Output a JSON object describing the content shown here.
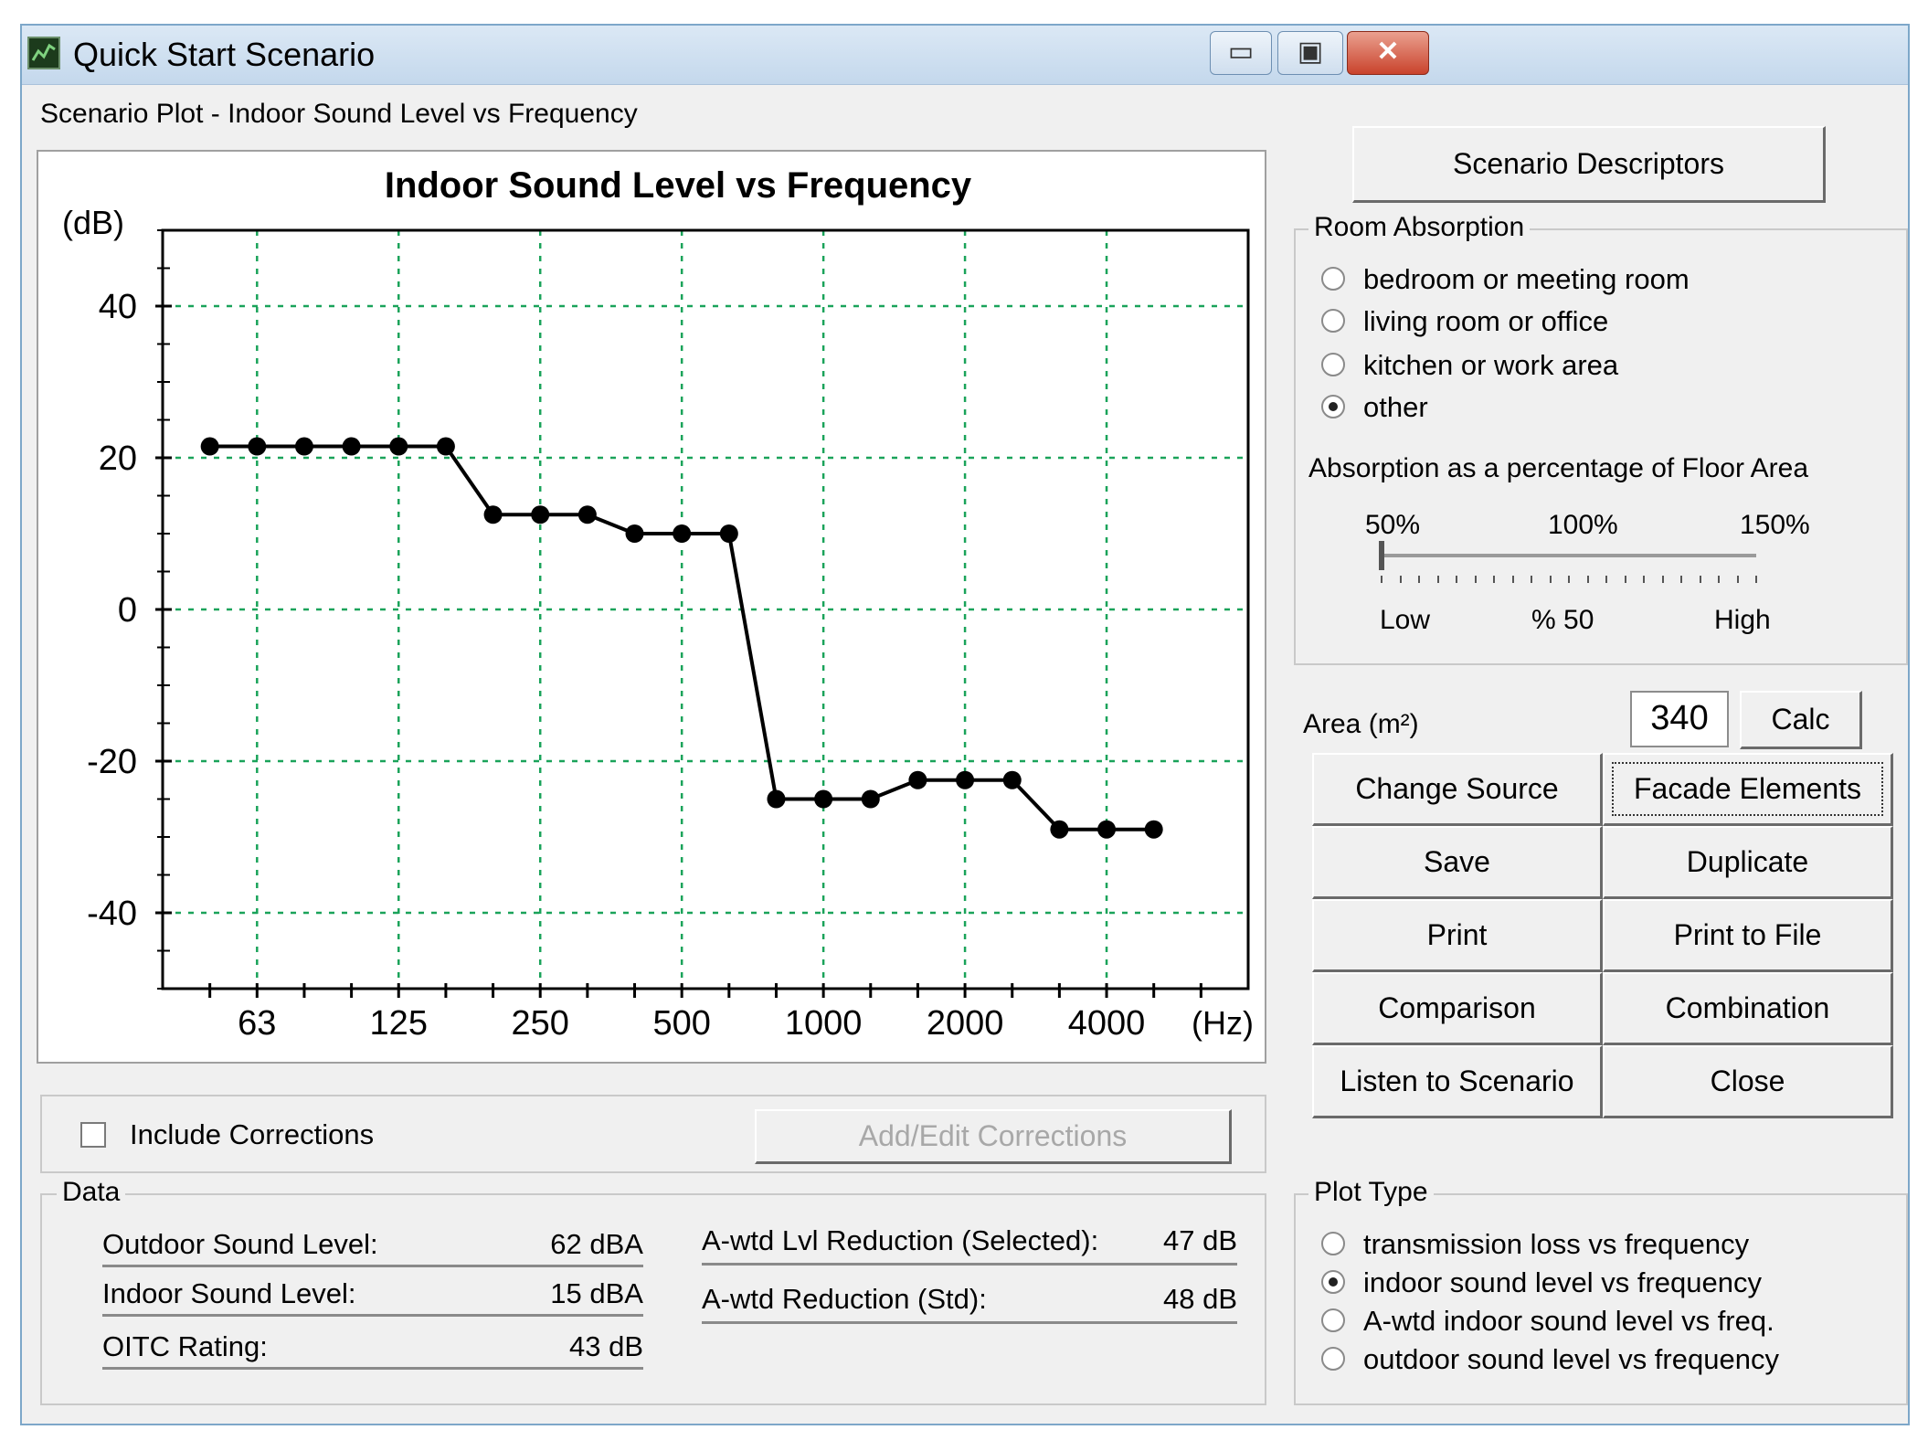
{
  "window": {
    "title": "Quick Start Scenario",
    "controls": {
      "minimize": "▭",
      "maximize": "▣",
      "close": "✕"
    }
  },
  "plot_section_label": "Scenario Plot - Indoor Sound Level vs Frequency",
  "chart_data": {
    "type": "line",
    "title": "Indoor Sound Level vs Frequency",
    "ylabel": "(dB)",
    "xlabel": "(Hz)",
    "ylim": [
      -50,
      50
    ],
    "yticks": [
      40,
      20,
      0,
      -20,
      -40
    ],
    "x_tick_labels": [
      "63",
      "125",
      "250",
      "500",
      "1000",
      "2000",
      "4000"
    ],
    "x_positions": [
      -1,
      0,
      1,
      2,
      3,
      4,
      5,
      6,
      7,
      8,
      9,
      10,
      11,
      12,
      13,
      14,
      15,
      16,
      17,
      18,
      19,
      20
    ],
    "labeled_positions": [
      0,
      3,
      6,
      9,
      12,
      15,
      18
    ],
    "grid": true,
    "series": [
      {
        "values": [
          21.5,
          21.5,
          21.5,
          21.5,
          21.5,
          21.5,
          12.5,
          12.5,
          12.5,
          10,
          10,
          10,
          -25,
          -25,
          -25,
          -22.5,
          -22.5,
          -22.5,
          -29,
          -29,
          -29
        ]
      }
    ]
  },
  "buttons": {
    "scenario_descriptors": "Scenario Descriptors",
    "calc": "Calc",
    "change_source": "Change Source",
    "facade_elements": "Facade Elements",
    "save": "Save",
    "duplicate": "Duplicate",
    "print": "Print",
    "print_to_file": "Print to File",
    "comparison": "Comparison",
    "combination": "Combination",
    "listen": "Listen to Scenario",
    "close": "Close",
    "add_edit_corrections": "Add/Edit Corrections"
  },
  "room_absorption": {
    "legend": "Room Absorption",
    "options": [
      "bedroom or meeting room",
      "living room or office",
      "kitchen or work area",
      "other"
    ],
    "selected": 3,
    "absorption_label": "Absorption as a percentage of Floor Area",
    "slider_top_labels": [
      "50%",
      "100%",
      "150%"
    ],
    "slider_bottom_labels": [
      "Low",
      "% 50",
      "High"
    ],
    "slider_value": 0.0
  },
  "area": {
    "label": "Area (m²)",
    "value": "340"
  },
  "corrections": {
    "label": "Include Corrections",
    "checked": false
  },
  "data": {
    "legend": "Data",
    "rows_left": [
      {
        "label": "Outdoor Sound Level:",
        "value": "62 dBA"
      },
      {
        "label": "Indoor Sound Level:",
        "value": "15 dBA"
      },
      {
        "label": "OITC Rating:",
        "value": "43 dB"
      }
    ],
    "rows_right": [
      {
        "label": "A-wtd Lvl Reduction (Selected):",
        "value": "47 dB"
      },
      {
        "label": "A-wtd Reduction (Std):",
        "value": "48 dB"
      }
    ]
  },
  "plot_type": {
    "legend": "Plot Type",
    "options": [
      "transmission loss vs frequency",
      "indoor sound level vs frequency",
      "A-wtd indoor sound level vs freq.",
      "outdoor sound level vs frequency"
    ],
    "selected": 1
  }
}
